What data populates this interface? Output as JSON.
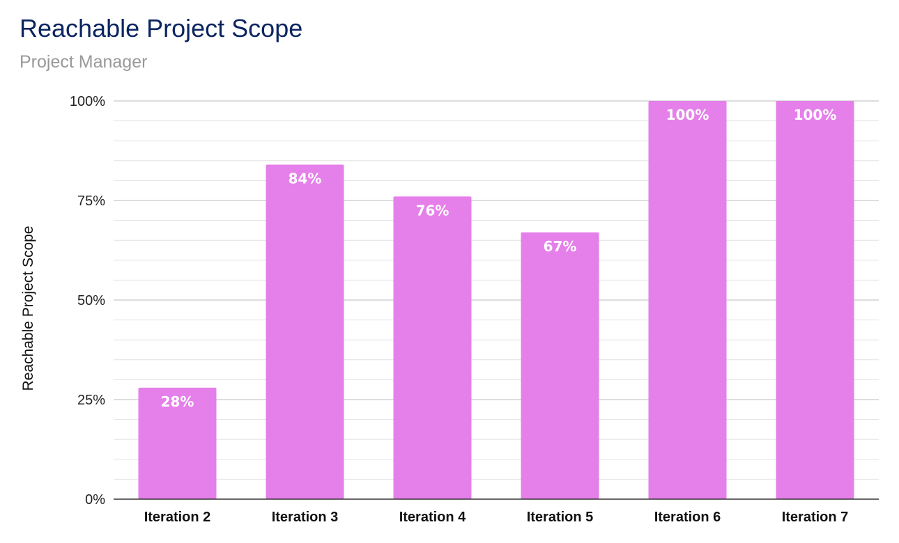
{
  "chart_data": {
    "type": "bar",
    "title": "Reachable Project Scope",
    "subtitle": "Project Manager",
    "xlabel": "",
    "ylabel": "Reachable Project Scope",
    "categories": [
      "Iteration 2",
      "Iteration 3",
      "Iteration 4",
      "Iteration 5",
      "Iteration 6",
      "Iteration 7"
    ],
    "values": [
      28,
      84,
      76,
      67,
      100,
      100
    ],
    "data_labels": [
      "28%",
      "84%",
      "76%",
      "67%",
      "100%",
      "100%"
    ],
    "ylim": [
      0,
      100
    ],
    "yticks": [
      0,
      25,
      50,
      75,
      100
    ],
    "ytick_labels": [
      "0%",
      "25%",
      "50%",
      "75%",
      "100%"
    ],
    "grid": true,
    "legend": "none",
    "colors": {
      "bar": "#e57fea",
      "title": "#0b2560",
      "subtitle": "#999999",
      "major_grid": "#bbbbbb",
      "minor_grid": "#e2e2e2",
      "axis": "#333333"
    }
  }
}
